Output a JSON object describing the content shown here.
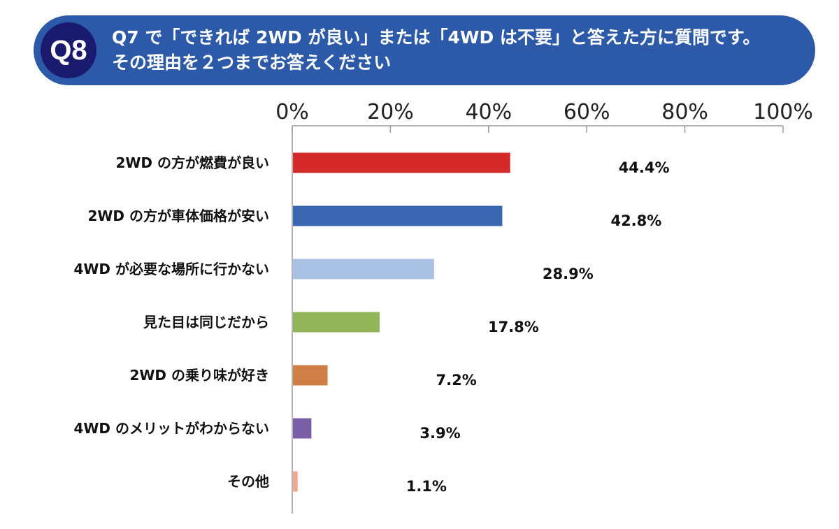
{
  "question": {
    "badge": "Q8",
    "line1": "Q7 で「できれば 2WD が良い」または「4WD は不要」と答えた方に質問です。",
    "line2": "その理由を２つまでお答えください"
  },
  "chart_data": {
    "type": "bar",
    "orientation": "horizontal",
    "categories": [
      "2WD の方が燃費が良い",
      "2WD の方が車体価格が安い",
      "4WD が必要な場所に行かない",
      "見た目は同じだから",
      "2WD の乗り味が好き",
      "4WD のメリットがわからない",
      "その他"
    ],
    "values": [
      44.4,
      42.8,
      28.9,
      17.8,
      7.2,
      3.9,
      1.1
    ],
    "value_labels": [
      "44.4%",
      "42.8%",
      "28.9%",
      "17.8%",
      "7.2%",
      "3.9%",
      "1.1%"
    ],
    "colors": [
      "#d42a2a",
      "#3a66b2",
      "#a9c1e3",
      "#92b55a",
      "#cf7f45",
      "#7a5ea6",
      "#f2a591"
    ],
    "xlim": [
      0,
      100
    ],
    "ticks": [
      "0%",
      "20%",
      "40%",
      "60%",
      "80%",
      "100%"
    ],
    "tick_values": [
      0,
      20,
      40,
      60,
      80,
      100
    ],
    "grid": false,
    "legend": "none"
  }
}
